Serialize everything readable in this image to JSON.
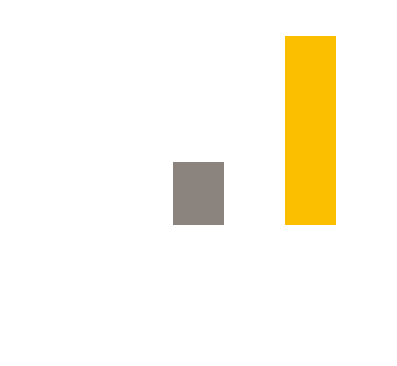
{
  "chart_data": {
    "type": "bar",
    "categories": [
      null,
      null
    ],
    "values": [
      71,
      212
    ],
    "colors": [
      "#8a837e",
      "#fbbf00"
    ],
    "ylim": [
      0,
      212
    ]
  }
}
